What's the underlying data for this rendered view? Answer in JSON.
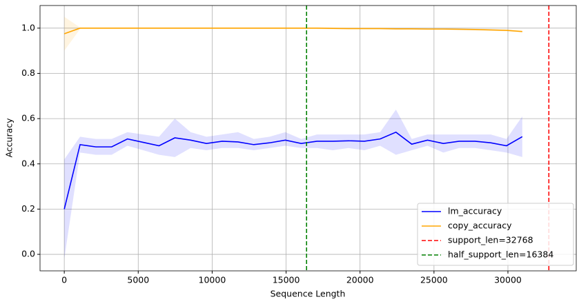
{
  "chart_data": {
    "type": "line",
    "x_label": "Sequence Length",
    "y_label": "Accuracy",
    "x": [
      0,
      1068,
      2136,
      3204,
      4272,
      5340,
      6408,
      7476,
      8544,
      9612,
      10680,
      11748,
      12816,
      13884,
      14952,
      16020,
      17088,
      18156,
      19224,
      20292,
      21360,
      22428,
      23496,
      24564,
      25632,
      26700,
      27768,
      28836,
      29904,
      30972
    ],
    "series": [
      {
        "name": "lm_accuracy",
        "color": "#0000ff",
        "values": [
          0.2,
          0.485,
          0.475,
          0.475,
          0.51,
          0.495,
          0.48,
          0.515,
          0.505,
          0.49,
          0.5,
          0.497,
          0.485,
          0.493,
          0.505,
          0.49,
          0.5,
          0.5,
          0.502,
          0.5,
          0.51,
          0.54,
          0.487,
          0.505,
          0.49,
          0.5,
          0.5,
          0.493,
          0.48,
          0.52
        ],
        "lower": [
          -0.02,
          0.45,
          0.44,
          0.44,
          0.48,
          0.46,
          0.44,
          0.43,
          0.47,
          0.46,
          0.47,
          0.47,
          0.46,
          0.47,
          0.48,
          0.47,
          0.47,
          0.46,
          0.47,
          0.46,
          0.48,
          0.44,
          0.46,
          0.48,
          0.45,
          0.47,
          0.47,
          0.46,
          0.45,
          0.43
        ],
        "upper": [
          0.42,
          0.52,
          0.51,
          0.51,
          0.54,
          0.53,
          0.52,
          0.6,
          0.54,
          0.52,
          0.53,
          0.54,
          0.51,
          0.52,
          0.54,
          0.51,
          0.53,
          0.53,
          0.53,
          0.53,
          0.54,
          0.64,
          0.51,
          0.53,
          0.53,
          0.53,
          0.53,
          0.53,
          0.51,
          0.61
        ]
      },
      {
        "name": "copy_accuracy",
        "color": "#ffa500",
        "values": [
          0.975,
          1.0,
          1.0,
          1.0,
          1.0,
          1.0,
          1.0,
          1.0,
          1.0,
          1.0,
          1.0,
          1.0,
          1.0,
          1.0,
          1.0,
          1.0,
          1.0,
          0.999,
          0.998,
          0.998,
          0.998,
          0.997,
          0.997,
          0.996,
          0.996,
          0.995,
          0.994,
          0.992,
          0.99,
          0.985
        ],
        "lower": [
          0.9,
          0.996,
          0.996,
          0.996,
          0.996,
          0.996,
          0.996,
          0.996,
          0.996,
          0.996,
          0.996,
          0.996,
          0.996,
          0.996,
          0.996,
          0.996,
          0.996,
          0.995,
          0.994,
          0.994,
          0.994,
          0.993,
          0.993,
          0.992,
          0.992,
          0.991,
          0.99,
          0.988,
          0.986,
          0.98
        ],
        "upper": [
          1.05,
          1.003,
          1.003,
          1.003,
          1.003,
          1.003,
          1.003,
          1.003,
          1.003,
          1.003,
          1.003,
          1.003,
          1.003,
          1.003,
          1.003,
          1.003,
          1.003,
          1.002,
          1.001,
          1.001,
          1.001,
          1.0,
          1.0,
          0.999,
          0.999,
          0.998,
          0.997,
          0.996,
          0.994,
          0.99
        ]
      }
    ],
    "vlines": [
      {
        "name": "support_len=32768",
        "x": 32768,
        "color": "#ff0000"
      },
      {
        "name": "half_support_len=16384",
        "x": 16384,
        "color": "#008000"
      }
    ],
    "xlim": [
      -1640,
      34620
    ],
    "ylim": [
      -0.073,
      1.1
    ],
    "xticks": [
      0,
      5000,
      10000,
      15000,
      20000,
      25000,
      30000
    ],
    "yticks": [
      {
        "value": 0,
        "label": "0.0"
      },
      {
        "value": 0.2,
        "label": "0.2"
      },
      {
        "value": 0.4,
        "label": "0.4"
      },
      {
        "value": 0.6,
        "label": "0.6"
      },
      {
        "value": 0.8,
        "label": "0.8"
      },
      {
        "value": 1,
        "label": "1.0"
      }
    ],
    "grid": true,
    "legend": "lower right"
  }
}
